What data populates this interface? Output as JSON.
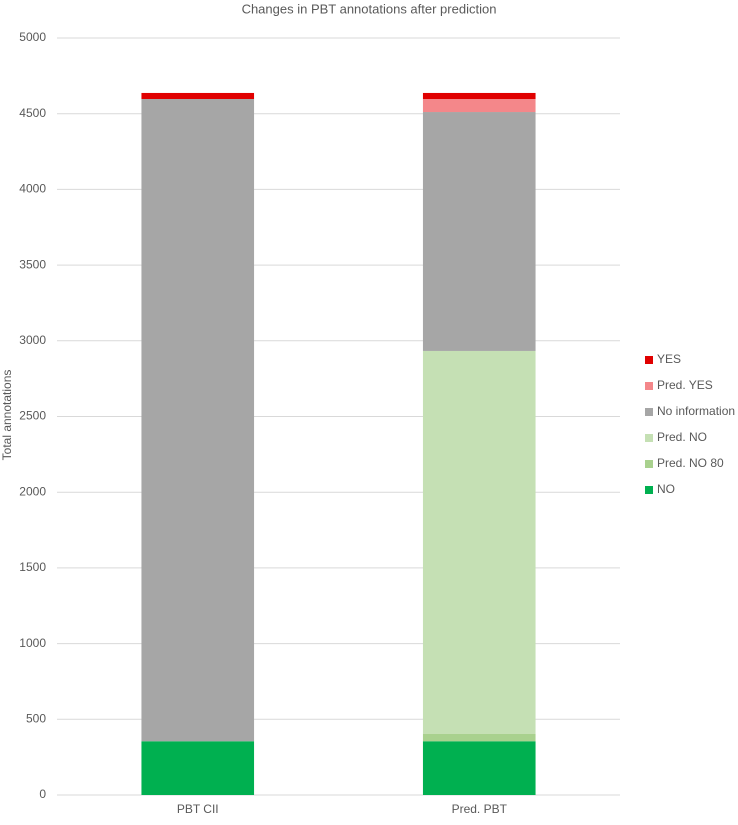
{
  "chart_data": {
    "type": "stacked_bar",
    "title": "Changes in PBT annotations after prediction",
    "y_label": "Total annotations",
    "categories": [
      "PBT CII",
      "Pred. PBT"
    ],
    "series": [
      {
        "name": "NO",
        "color": "#00b050",
        "values": [
          355,
          355
        ]
      },
      {
        "name": "Pred. NO 80",
        "color": "#a9d18e",
        "values": [
          0,
          48
        ]
      },
      {
        "name": "Pred. NO",
        "color": "#c5e0b4",
        "values": [
          0,
          2530
        ]
      },
      {
        "name": "No information",
        "color": "#a6a6a6",
        "values": [
          4242,
          1578
        ]
      },
      {
        "name": "Pred. YES",
        "color": "#f4878a",
        "values": [
          0,
          86
        ]
      },
      {
        "name": "YES",
        "color": "#e00000",
        "values": [
          40,
          40
        ]
      }
    ],
    "ylim": [
      0,
      5000
    ],
    "yticks": [
      0,
      500,
      1000,
      1500,
      2000,
      2500,
      3000,
      3500,
      4000,
      4500,
      5000
    ],
    "grid": true,
    "legend": "right"
  }
}
